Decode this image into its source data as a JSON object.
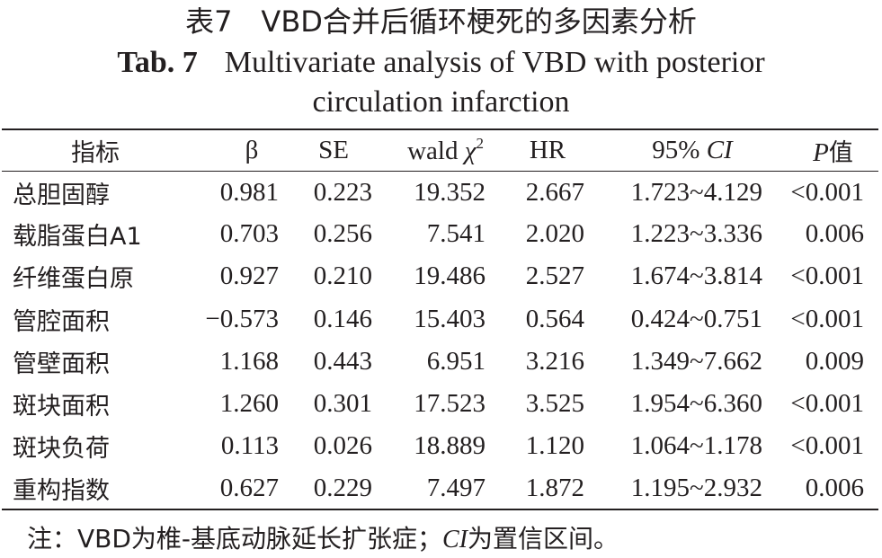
{
  "title": {
    "cn": "表7　VBD合并后循环梗死的多因素分析",
    "en_label": "Tab. 7",
    "en_line1": "Multivariate analysis of VBD with posterior",
    "en_line2": "circulation infarction"
  },
  "table": {
    "headers": {
      "name": "指标",
      "beta": "β",
      "se": "SE",
      "wald_text": "wald ",
      "wald_sym": "χ",
      "wald_sup": "2",
      "hr": "HR",
      "ci_prefix": "95% ",
      "ci_italic": "CI",
      "p_italic": "P",
      "p_cn": "值"
    },
    "rows": [
      {
        "name": "总胆固醇",
        "beta": "0.981",
        "se": "0.223",
        "wald": "19.352",
        "hr": "2.667",
        "ci": "1.723~4.129",
        "p": "<0.001"
      },
      {
        "name": "载脂蛋白A1",
        "beta": "0.703",
        "se": "0.256",
        "wald": "7.541",
        "hr": "2.020",
        "ci": "1.223~3.336",
        "p": "0.006"
      },
      {
        "name": "纤维蛋白原",
        "beta": "0.927",
        "se": "0.210",
        "wald": "19.486",
        "hr": "2.527",
        "ci": "1.674~3.814",
        "p": "<0.001"
      },
      {
        "name": "管腔面积",
        "beta": "−0.573",
        "se": "0.146",
        "wald": "15.403",
        "hr": "0.564",
        "ci": "0.424~0.751",
        "p": "<0.001"
      },
      {
        "name": "管壁面积",
        "beta": "1.168",
        "se": "0.443",
        "wald": "6.951",
        "hr": "3.216",
        "ci": "1.349~7.662",
        "p": "0.009"
      },
      {
        "name": "斑块面积",
        "beta": "1.260",
        "se": "0.301",
        "wald": "17.523",
        "hr": "3.525",
        "ci": "1.954~6.360",
        "p": "<0.001"
      },
      {
        "name": "斑块负荷",
        "beta": "0.113",
        "se": "0.026",
        "wald": "18.889",
        "hr": "1.120",
        "ci": "1.064~1.178",
        "p": "<0.001"
      },
      {
        "name": "重构指数",
        "beta": "0.627",
        "se": "0.229",
        "wald": "7.497",
        "hr": "1.872",
        "ci": "1.195~2.932",
        "p": "0.006"
      }
    ]
  },
  "note": {
    "prefix": "注：VBD为椎-基底动脉延长扩张症；",
    "ci_italic": "CI",
    "suffix": "为置信区间。"
  }
}
